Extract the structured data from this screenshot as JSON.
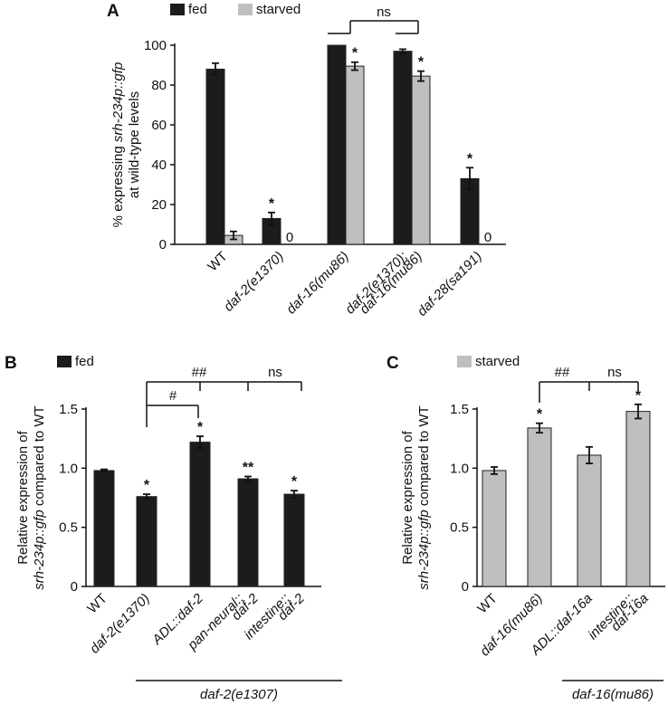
{
  "colors": {
    "fed": "#1c1c1c",
    "starved": "#bfbfbf",
    "axis": "#111111"
  },
  "chart_data": [
    {
      "panel": "A",
      "type": "bar",
      "legend": [
        "fed",
        "starved"
      ],
      "ylabel_pre": "% expressing ",
      "ylabel_em": "srh-234p::gfp",
      "ylabel2": "at wild-type levels",
      "ylim": [
        0,
        100
      ],
      "yticks": [
        "0",
        "20",
        "40",
        "60",
        "80",
        "100"
      ],
      "categories": [
        {
          "lines": [
            "WT"
          ],
          "italic": false
        },
        {
          "lines": [
            "daf-2(e1370)"
          ],
          "italic": true
        },
        {
          "lines": [
            "daf-16(mu86)"
          ],
          "italic": true
        },
        {
          "lines": [
            "daf-2(e1370);",
            "daf-16(mu86)"
          ],
          "italic": true
        },
        {
          "lines": [
            "daf-28(sa191)"
          ],
          "italic": true
        }
      ],
      "series": [
        {
          "name": "fed",
          "values": [
            88,
            13,
            100,
            97,
            33
          ],
          "errors": [
            3,
            3,
            0,
            1,
            5.5
          ],
          "stars": [
            "",
            "*",
            "",
            "",
            "*"
          ]
        },
        {
          "name": "starved",
          "values": [
            4.5,
            0,
            89.5,
            84.5,
            0
          ],
          "errors": [
            2,
            0,
            2,
            2.5,
            0
          ],
          "stars": [
            "",
            "",
            "*",
            "*",
            ""
          ],
          "zero_text": "0"
        }
      ],
      "brackets": [
        {
          "label": "ns"
        }
      ]
    },
    {
      "panel": "B",
      "type": "bar",
      "legend": [
        "fed"
      ],
      "ylabel1": "Relative expression of",
      "ylabel_em": "srh-234p::gfp",
      "ylabel_post": " compared to WT",
      "ylim": [
        0,
        1.5
      ],
      "yticks": [
        "0",
        "0.5",
        "1.0",
        "1.5"
      ],
      "categories": [
        {
          "lines": [
            "WT"
          ],
          "italic": false
        },
        {
          "lines": [
            "daf-2(e1370)"
          ],
          "italic": true
        },
        {
          "lines": [
            "ADL::daf-2"
          ],
          "italic": true
        },
        {
          "lines": [
            "pan-neural::",
            "daf-2"
          ],
          "italic": true
        },
        {
          "lines": [
            "intestine::",
            "daf-2"
          ],
          "italic": true
        }
      ],
      "series": [
        {
          "name": "fed",
          "values": [
            0.98,
            0.76,
            1.22,
            0.91,
            0.78
          ],
          "errors": [
            0.01,
            0.02,
            0.05,
            0.02,
            0.03
          ],
          "stars": [
            "",
            "*",
            "*",
            "**",
            "*"
          ]
        }
      ],
      "brackets": [
        {
          "label": "##"
        },
        {
          "label": "ns"
        },
        {
          "label": "#"
        }
      ],
      "group_label": "daf-2(e1307)"
    },
    {
      "panel": "C",
      "type": "bar",
      "legend": [
        "starved"
      ],
      "ylabel1": "Relative expression of",
      "ylabel_em": "srh-234p::gfp",
      "ylabel_post": " compared to WT",
      "ylim": [
        0,
        1.5
      ],
      "yticks": [
        "0",
        "0.5",
        "1.0",
        "1.5"
      ],
      "categories": [
        {
          "lines": [
            "WT"
          ],
          "italic": false
        },
        {
          "lines": [
            "daf-16(mu86)"
          ],
          "italic": true
        },
        {
          "lines": [
            "ADL::daf-16a"
          ],
          "italic": true
        },
        {
          "lines": [
            "intestine::",
            "daf-16a"
          ],
          "italic": true
        }
      ],
      "series": [
        {
          "name": "starved",
          "values": [
            0.98,
            1.34,
            1.11,
            1.48
          ],
          "errors": [
            0.03,
            0.04,
            0.07,
            0.06
          ],
          "stars": [
            "",
            "*",
            "",
            "*"
          ]
        }
      ],
      "brackets": [
        {
          "label": "##"
        },
        {
          "label": "ns"
        }
      ],
      "group_label": "daf-16(mu86)"
    }
  ]
}
